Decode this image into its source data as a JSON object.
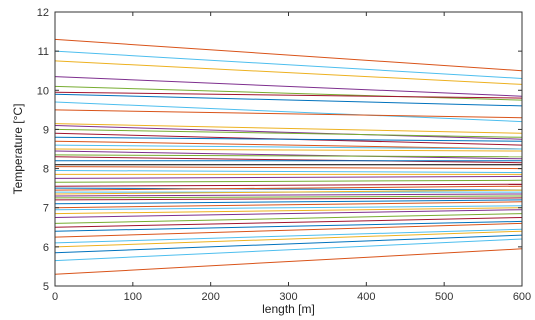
{
  "chart_data": {
    "type": "line",
    "title": "",
    "xlabel": "length [m]",
    "ylabel": "Temperature [°C]",
    "xlim": [
      0,
      600
    ],
    "ylim": [
      5,
      12
    ],
    "xticks": [
      0,
      100,
      200,
      300,
      400,
      500,
      600
    ],
    "yticks": [
      5,
      6,
      7,
      8,
      9,
      10,
      11,
      12
    ],
    "grid": false,
    "legend": "none",
    "series": [
      {
        "color": "#d95319",
        "x": [
          0,
          600
        ],
        "y": [
          11.3,
          10.5
        ]
      },
      {
        "color": "#4dbeee",
        "x": [
          0,
          600
        ],
        "y": [
          11.0,
          10.3
        ]
      },
      {
        "color": "#edb120",
        "x": [
          0,
          600
        ],
        "y": [
          10.75,
          10.15
        ]
      },
      {
        "color": "#7e2f8e",
        "x": [
          0,
          600
        ],
        "y": [
          10.35,
          9.85
        ]
      },
      {
        "color": "#77ac30",
        "x": [
          0,
          600
        ],
        "y": [
          10.1,
          9.75
        ]
      },
      {
        "color": "#a2142f",
        "x": [
          0,
          600
        ],
        "y": [
          9.95,
          9.8
        ]
      },
      {
        "color": "#0072bd",
        "x": [
          0,
          600
        ],
        "y": [
          9.9,
          9.6
        ]
      },
      {
        "color": "#4dbeee",
        "x": [
          0,
          600
        ],
        "y": [
          9.7,
          9.2
        ]
      },
      {
        "color": "#d95319",
        "x": [
          0,
          600
        ],
        "y": [
          9.5,
          9.3
        ]
      },
      {
        "color": "#edb120",
        "x": [
          0,
          600
        ],
        "y": [
          9.15,
          8.9
        ]
      },
      {
        "color": "#7e2f8e",
        "x": [
          0,
          600
        ],
        "y": [
          9.1,
          8.75
        ]
      },
      {
        "color": "#77ac30",
        "x": [
          0,
          600
        ],
        "y": [
          9.0,
          8.8
        ]
      },
      {
        "color": "#a2142f",
        "x": [
          0,
          600
        ],
        "y": [
          8.9,
          8.6
        ]
      },
      {
        "color": "#0072bd",
        "x": [
          0,
          600
        ],
        "y": [
          8.8,
          8.7
        ]
      },
      {
        "color": "#d95319",
        "x": [
          0,
          600
        ],
        "y": [
          8.7,
          8.5
        ]
      },
      {
        "color": "#4dbeee",
        "x": [
          0,
          600
        ],
        "y": [
          8.6,
          8.5
        ]
      },
      {
        "color": "#edb120",
        "x": [
          0,
          600
        ],
        "y": [
          8.5,
          8.45
        ]
      },
      {
        "color": "#7e2f8e",
        "x": [
          0,
          600
        ],
        "y": [
          8.45,
          8.25
        ]
      },
      {
        "color": "#77ac30",
        "x": [
          0,
          600
        ],
        "y": [
          8.35,
          8.3
        ]
      },
      {
        "color": "#a2142f",
        "x": [
          0,
          600
        ],
        "y": [
          8.3,
          8.15
        ]
      },
      {
        "color": "#0072bd",
        "x": [
          0,
          600
        ],
        "y": [
          8.2,
          8.2
        ]
      },
      {
        "color": "#000000",
        "x": [
          0,
          600
        ],
        "y": [
          8.1,
          8.1
        ]
      },
      {
        "color": "#d95319",
        "x": [
          0,
          600
        ],
        "y": [
          8.05,
          8.0
        ]
      },
      {
        "color": "#4dbeee",
        "x": [
          0,
          600
        ],
        "y": [
          7.95,
          7.9
        ]
      },
      {
        "color": "#edb120",
        "x": [
          0,
          600
        ],
        "y": [
          7.85,
          7.85
        ]
      },
      {
        "color": "#7e2f8e",
        "x": [
          0,
          600
        ],
        "y": [
          7.75,
          7.8
        ]
      },
      {
        "color": "#77ac30",
        "x": [
          0,
          600
        ],
        "y": [
          7.65,
          7.7
        ]
      },
      {
        "color": "#a2142f",
        "x": [
          0,
          600
        ],
        "y": [
          7.55,
          7.6
        ]
      },
      {
        "color": "#0072bd",
        "x": [
          0,
          600
        ],
        "y": [
          7.5,
          7.45
        ]
      },
      {
        "color": "#d95319",
        "x": [
          0,
          600
        ],
        "y": [
          7.45,
          7.55
        ]
      },
      {
        "color": "#4dbeee",
        "x": [
          0,
          600
        ],
        "y": [
          7.4,
          7.4
        ]
      },
      {
        "color": "#edb120",
        "x": [
          0,
          600
        ],
        "y": [
          7.35,
          7.45
        ]
      },
      {
        "color": "#7e2f8e",
        "x": [
          0,
          600
        ],
        "y": [
          7.3,
          7.35
        ]
      },
      {
        "color": "#77ac30",
        "x": [
          0,
          600
        ],
        "y": [
          7.25,
          7.3
        ]
      },
      {
        "color": "#a2142f",
        "x": [
          0,
          600
        ],
        "y": [
          7.2,
          7.25
        ]
      },
      {
        "color": "#0072bd",
        "x": [
          0,
          600
        ],
        "y": [
          7.1,
          7.2
        ]
      },
      {
        "color": "#d95319",
        "x": [
          0,
          600
        ],
        "y": [
          7.0,
          7.15
        ]
      },
      {
        "color": "#4dbeee",
        "x": [
          0,
          600
        ],
        "y": [
          6.95,
          7.05
        ]
      },
      {
        "color": "#edb120",
        "x": [
          0,
          600
        ],
        "y": [
          6.85,
          7.0
        ]
      },
      {
        "color": "#7e2f8e",
        "x": [
          0,
          600
        ],
        "y": [
          6.75,
          6.95
        ]
      },
      {
        "color": "#77ac30",
        "x": [
          0,
          600
        ],
        "y": [
          6.6,
          6.85
        ]
      },
      {
        "color": "#a2142f",
        "x": [
          0,
          600
        ],
        "y": [
          6.5,
          6.75
        ]
      },
      {
        "color": "#0072bd",
        "x": [
          0,
          600
        ],
        "y": [
          6.4,
          6.65
        ]
      },
      {
        "color": "#d95319",
        "x": [
          0,
          600
        ],
        "y": [
          6.25,
          6.6
        ]
      },
      {
        "color": "#4dbeee",
        "x": [
          0,
          600
        ],
        "y": [
          6.1,
          6.45
        ]
      },
      {
        "color": "#edb120",
        "x": [
          0,
          600
        ],
        "y": [
          6.0,
          6.4
        ]
      },
      {
        "color": "#0072bd",
        "x": [
          0,
          600
        ],
        "y": [
          5.85,
          6.3
        ]
      },
      {
        "color": "#4dbeee",
        "x": [
          0,
          600
        ],
        "y": [
          5.65,
          6.2
        ]
      },
      {
        "color": "#d95319",
        "x": [
          0,
          600
        ],
        "y": [
          5.3,
          5.95
        ]
      }
    ]
  }
}
